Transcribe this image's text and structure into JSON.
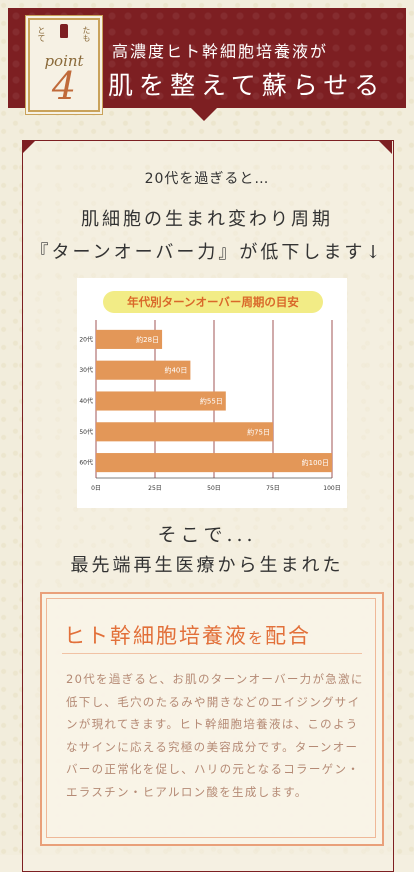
{
  "header": {
    "badge_top_left": "とて",
    "badge_top_right": "たも",
    "badge_point": "point",
    "badge_number": "4",
    "subtitle": "高濃度ヒト幹細胞培養液が",
    "title": "肌を整えて蘇らせる",
    "color": "#7d1f22"
  },
  "intro": "20代を過ぎると…",
  "lead": {
    "line1": "肌細胞の生まれ変わり周期",
    "line2": "『ターンオーバー力』が低下します↓"
  },
  "chart_data": {
    "type": "bar",
    "orientation": "horizontal",
    "title": "年代別ターンオーバー周期の目安",
    "categories": [
      "20代",
      "30代",
      "40代",
      "50代",
      "60代"
    ],
    "values": [
      28,
      40,
      55,
      75,
      100
    ],
    "data_labels": [
      "約28日",
      "約40日",
      "約55日",
      "約75日",
      "約100日"
    ],
    "x_ticks": [
      "0日",
      "25日",
      "50日",
      "75日",
      "100日"
    ],
    "xlim": [
      0,
      100
    ],
    "grid": true,
    "bar_color": "#e39758",
    "grid_color": "#8b2a2a"
  },
  "then": "そこで...",
  "born": "最先端再生医療から生まれた",
  "feature": {
    "title_main": "ヒト幹細胞培養液",
    "title_particle": "を",
    "title_end": "配合",
    "body": "20代を過ぎると、お肌のターンオーバー力が急激に低下し、毛穴のたるみや開きなどのエイジングサインが現れてきます。ヒト幹細胞培養液は、このようなサインに応える究極の美容成分です。ターンオーバーの正常化を促し、ハリの元となるコラーゲン・エラスチン・ヒアルロン酸を生成します。",
    "accent": "#e2703a"
  }
}
